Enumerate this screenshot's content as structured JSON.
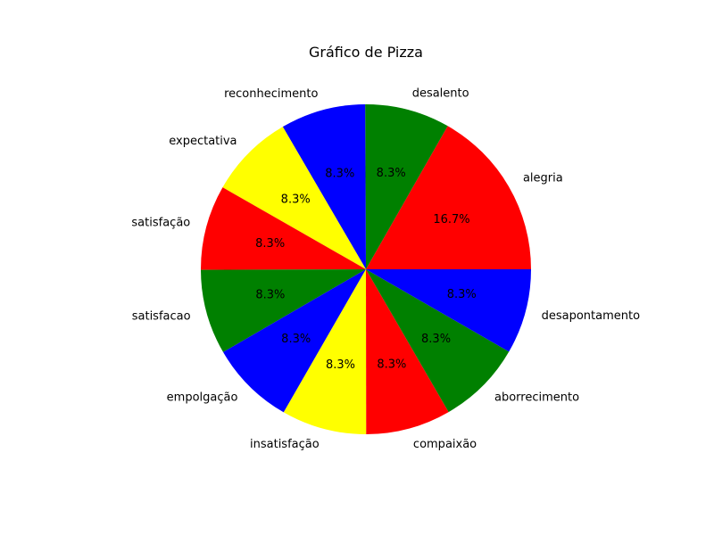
{
  "chart_data": {
    "type": "pie",
    "title": "Gráfico de Pizza",
    "slices": [
      {
        "label": "alegria",
        "value": 16.7,
        "pct_label": "16.7%",
        "color": "#ff0000"
      },
      {
        "label": "desalento",
        "value": 8.3,
        "pct_label": "8.3%",
        "color": "#008000"
      },
      {
        "label": "reconhecimento",
        "value": 8.3,
        "pct_label": "8.3%",
        "color": "#0000ff"
      },
      {
        "label": "expectativa",
        "value": 8.3,
        "pct_label": "8.3%",
        "color": "#ffff00"
      },
      {
        "label": "satisfação",
        "value": 8.3,
        "pct_label": "8.3%",
        "color": "#ff0000"
      },
      {
        "label": "satisfacao",
        "value": 8.3,
        "pct_label": "8.3%",
        "color": "#008000"
      },
      {
        "label": "empolgação",
        "value": 8.3,
        "pct_label": "8.3%",
        "color": "#0000ff"
      },
      {
        "label": "insatisfação",
        "value": 8.3,
        "pct_label": "8.3%",
        "color": "#ffff00"
      },
      {
        "label": "compaixão",
        "value": 8.3,
        "pct_label": "8.3%",
        "color": "#ff0000"
      },
      {
        "label": "aborrecimento",
        "value": 8.3,
        "pct_label": "8.3%",
        "color": "#008000"
      },
      {
        "label": "desapontamento",
        "value": 8.3,
        "pct_label": "8.3%",
        "color": "#0000ff"
      }
    ]
  }
}
